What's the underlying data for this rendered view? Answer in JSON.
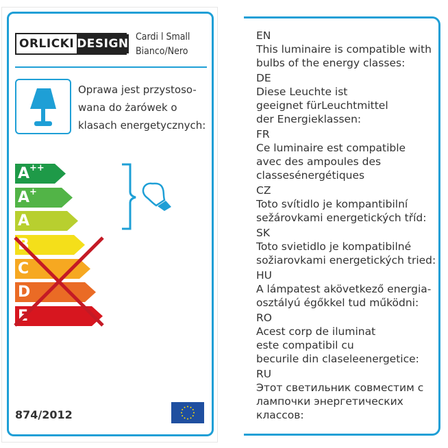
{
  "left": {
    "logo": {
      "part1": "ORLICKI",
      "part2": "DESIGN"
    },
    "product": {
      "name": "Cardi l Small",
      "color": "Bianco/Nero"
    },
    "lamp_icon": "table-lamp-icon",
    "description": [
      "Oprawa jest przystoso-",
      "wana do żarówek o",
      "klasach energetycznych:"
    ],
    "energy_classes": [
      {
        "label": "A",
        "sup": "++",
        "color": "#1e9a48",
        "crossed": false
      },
      {
        "label": "A",
        "sup": "+",
        "color": "#52b447",
        "crossed": false
      },
      {
        "label": "A",
        "sup": "",
        "color": "#b8cf2f",
        "crossed": false
      },
      {
        "label": "B",
        "sup": "",
        "color": "#f4df1a",
        "crossed": true
      },
      {
        "label": "C",
        "sup": "",
        "color": "#f6a821",
        "crossed": true
      },
      {
        "label": "D",
        "sup": "",
        "color": "#ea6b25",
        "crossed": true
      },
      {
        "label": "E",
        "sup": "",
        "color": "#d7161f",
        "crossed": true
      }
    ],
    "bulb_icon": "light-bulb-icon",
    "regulation": "874/2012",
    "eu_flag_icon": "eu-flag-icon",
    "accent_color": "#1e9fd6",
    "cross_color": "#c41a25"
  },
  "right": {
    "languages": [
      {
        "code": "EN",
        "lines": [
          "This luminaire is compatible with",
          "bulbs of the energy classes:"
        ]
      },
      {
        "code": "DE",
        "lines": [
          "Diese Leuchte ist",
          "geeignet fürLeuchtmittel",
          "der Energieklassen:"
        ]
      },
      {
        "code": "FR",
        "lines": [
          "Ce luminaire est compatible",
          "avec des ampoules des",
          "classesénergétiques"
        ]
      },
      {
        "code": "CZ",
        "lines": [
          "Toto svítidlo je kompantibilní",
          "sežárovkami energetických tříd:"
        ]
      },
      {
        "code": "SK",
        "lines": [
          "Toto svietidlo je kompatibilné",
          "sožiarovkami energetických tried:"
        ]
      },
      {
        "code": "HU",
        "lines": [
          "A lámpatest akövetkező energia-",
          "osztályú égőkkel tud működni:"
        ]
      },
      {
        "code": "RO",
        "lines": [
          "Acest corp de iluminat",
          "este compatibil cu",
          "becurile din claseleenergetice:"
        ]
      },
      {
        "code": "RU",
        "lines": [
          "Этот светильник совместим с",
          "лампочки энергетических",
          "классов:"
        ]
      }
    ]
  }
}
